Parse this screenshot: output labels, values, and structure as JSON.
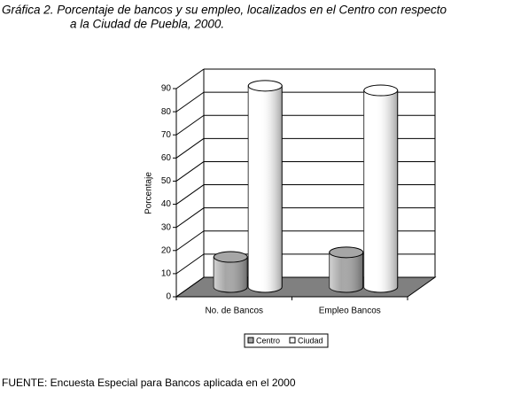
{
  "chart_data": {
    "type": "bar3d",
    "title": [
      "Gráfica 2. Porcentaje de bancos y su empleo, localizados en el Centro con respecto",
      "a la Ciudad de Puebla, 2000."
    ],
    "y_label": "Porcentaje",
    "categories": [
      "No. de Bancos",
      "Empleo Bancos"
    ],
    "series": [
      {
        "name": "Centro",
        "color": "#a6a6a6",
        "values": [
          13,
          15
        ]
      },
      {
        "name": "Ciudad",
        "color": "#ffffff",
        "values": [
          87,
          85
        ]
      }
    ],
    "ylim": [
      0,
      90
    ],
    "yticks": [
      0,
      10,
      20,
      30,
      40,
      50,
      60,
      70,
      80,
      90
    ],
    "grid": true,
    "legend": "bottom",
    "source": "FUENTE: Encuesta Especial para Bancos aplicada en el 2000"
  }
}
